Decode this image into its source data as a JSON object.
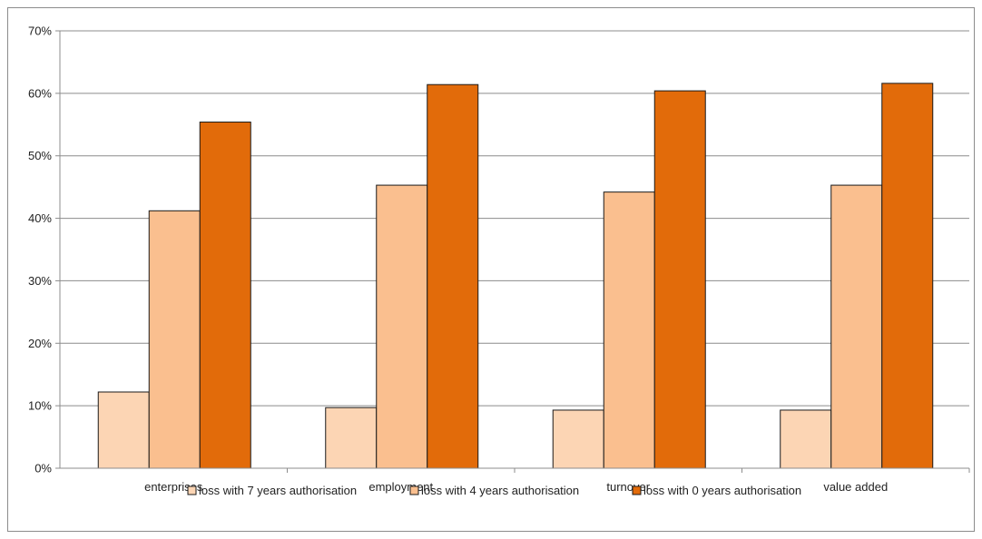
{
  "chart_data": {
    "type": "bar",
    "categories": [
      "enterprises",
      "employment",
      "turnover",
      "value added"
    ],
    "series": [
      {
        "name": "loss with 7 years authorisation",
        "color": "#fcd5b4",
        "values": [
          12.2,
          9.7,
          9.3,
          9.3
        ]
      },
      {
        "name": "loss with 4 years authorisation",
        "color": "#fabf8f",
        "values": [
          41.2,
          45.3,
          44.2,
          45.3
        ]
      },
      {
        "name": "loss with 0 years authorisation",
        "color": "#e26b0a",
        "values": [
          55.4,
          61.4,
          60.4,
          61.6
        ]
      }
    ],
    "title": "",
    "xlabel": "",
    "ylabel": "",
    "ylim": [
      0,
      70
    ],
    "yticks": [
      "0%",
      "10%",
      "20%",
      "30%",
      "40%",
      "50%",
      "60%",
      "70%"
    ],
    "grid": true,
    "legend": "bottom"
  }
}
